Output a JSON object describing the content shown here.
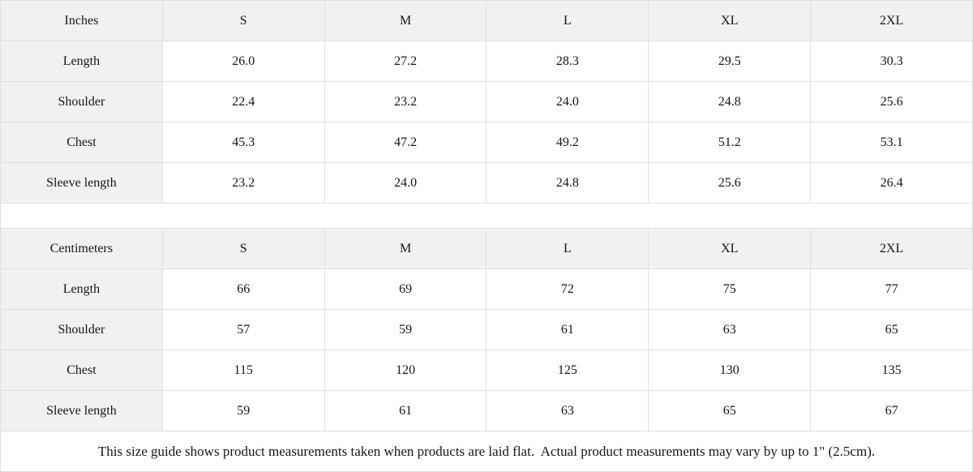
{
  "chart_data": [
    {
      "type": "table",
      "unit": "Inches",
      "columns": [
        "Inches",
        "S",
        "M",
        "L",
        "XL",
        "2XL"
      ],
      "rows": [
        [
          "Length",
          "26.0",
          "27.2",
          "28.3",
          "29.5",
          "30.3"
        ],
        [
          "Shoulder",
          "22.4",
          "23.2",
          "24.0",
          "24.8",
          "25.6"
        ],
        [
          "Chest",
          "45.3",
          "47.2",
          "49.2",
          "51.2",
          "53.1"
        ],
        [
          "Sleeve length",
          "23.2",
          "24.0",
          "24.8",
          "25.6",
          "26.4"
        ]
      ]
    },
    {
      "type": "table",
      "unit": "Centimeters",
      "columns": [
        "Centimeters",
        "S",
        "M",
        "L",
        "XL",
        "2XL"
      ],
      "rows": [
        [
          "Length",
          "66",
          "69",
          "72",
          "75",
          "77"
        ],
        [
          "Shoulder",
          "57",
          "59",
          "61",
          "63",
          "65"
        ],
        [
          "Chest",
          "115",
          "120",
          "125",
          "130",
          "135"
        ],
        [
          "Sleeve length",
          "59",
          "61",
          "63",
          "65",
          "67"
        ]
      ]
    }
  ],
  "footnote": "This size guide shows product measurements taken when products are laid flat.  Actual product measurements may vary by up to 1\" (2.5cm).",
  "colors": {
    "header_bg": "#f1f1f1",
    "border": "#e0e0e0",
    "text": "#161616"
  }
}
